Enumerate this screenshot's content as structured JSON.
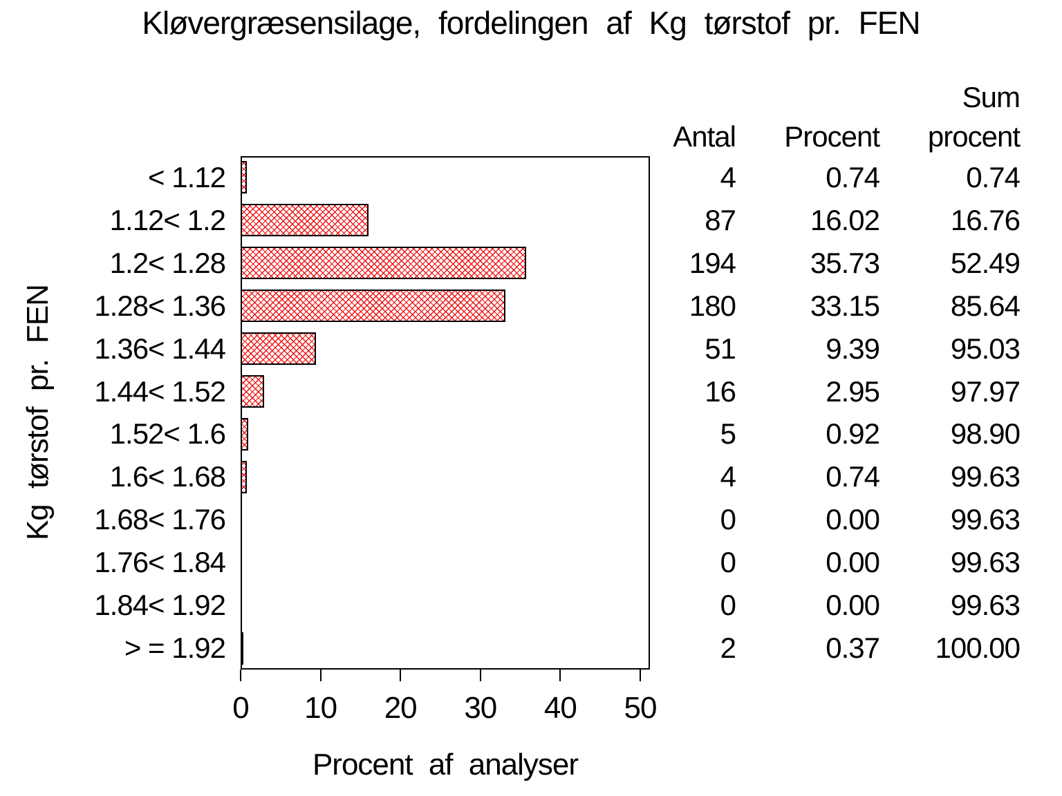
{
  "colors": {
    "background": "#ffffff",
    "text": "#000000",
    "bar_hatch": "#ee1111",
    "bar_border": "#000000",
    "axis": "#000000"
  },
  "chart_data": {
    "type": "bar",
    "orientation": "horizontal",
    "title": "Kløvergræsensilage, fordelingen af Kg tørstof pr. FEN",
    "xlabel": "Procent af analyser",
    "ylabel": "Kg tørstof pr. FEN",
    "xlim": [
      0,
      51.2
    ],
    "xticks": [
      0,
      10,
      20,
      30,
      40,
      50
    ],
    "grid": false,
    "legend": "none",
    "bar_pattern": "red diagonal crosshatch",
    "categories": [
      "< 1.12",
      "1.12< 1.2",
      "1.2< 1.28",
      "1.28< 1.36",
      "1.36< 1.44",
      "1.44< 1.52",
      "1.52< 1.6",
      "1.6< 1.68",
      "1.68< 1.76",
      "1.76< 1.84",
      "1.84< 1.92",
      "> = 1.92"
    ],
    "series": [
      {
        "name": "Procent af analyser",
        "values": [
          0.74,
          16.02,
          35.73,
          33.15,
          9.39,
          2.95,
          0.92,
          0.74,
          0.0,
          0.0,
          0.0,
          0.37
        ]
      }
    ],
    "table": {
      "headers": [
        "Antal",
        "Procent",
        "Sum procent"
      ],
      "header_sum_two_line": "Sum\nprocent",
      "rows": [
        [
          "4",
          "0.74",
          "0.74"
        ],
        [
          "87",
          "16.02",
          "16.76"
        ],
        [
          "194",
          "35.73",
          "52.49"
        ],
        [
          "180",
          "33.15",
          "85.64"
        ],
        [
          "51",
          "9.39",
          "95.03"
        ],
        [
          "16",
          "2.95",
          "97.97"
        ],
        [
          "5",
          "0.92",
          "98.90"
        ],
        [
          "4",
          "0.74",
          "99.63"
        ],
        [
          "0",
          "0.00",
          "99.63"
        ],
        [
          "0",
          "0.00",
          "99.63"
        ],
        [
          "0",
          "0.00",
          "99.63"
        ],
        [
          "2",
          "0.37",
          "100.00"
        ]
      ]
    }
  }
}
